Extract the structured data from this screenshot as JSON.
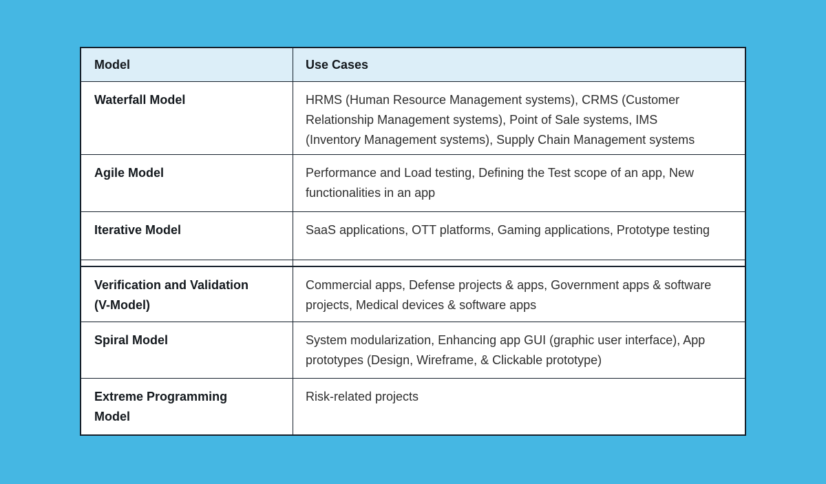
{
  "colors": {
    "page_background": "#45b7e3",
    "table_border": "#15202b",
    "header_background": "#dceef8",
    "header_text": "#13181d",
    "body_text": "#2e2e2e"
  },
  "table": {
    "header": {
      "model": "Model",
      "use_cases": "Use Cases"
    },
    "rows": [
      {
        "model": "Waterfall Model",
        "use_cases": "HRMS (Human Resource Management systems), CRMS (Customer Relationship Management systems), Point of Sale systems, IMS (Inventory Management systems), Supply Chain Management systems"
      },
      {
        "model": "Agile Model",
        "use_cases": "Performance and Load testing, Defining the Test scope of an app, New functionalities in an app"
      },
      {
        "model": "Iterative Model",
        "use_cases": "SaaS applications, OTT platforms, Gaming applications, Prototype testing"
      },
      {
        "model": "Verification and Validation (V-Model)",
        "use_cases": "Commercial apps, Defense projects & apps, Government apps & software projects, Medical devices & software apps"
      },
      {
        "model": "Spiral Model",
        "use_cases": "System modularization, Enhancing app GUI (graphic user interface), App prototypes (Design, Wireframe, & Clickable prototype)"
      },
      {
        "model": "Extreme Programming Model",
        "use_cases": "Risk-related projects"
      }
    ]
  }
}
